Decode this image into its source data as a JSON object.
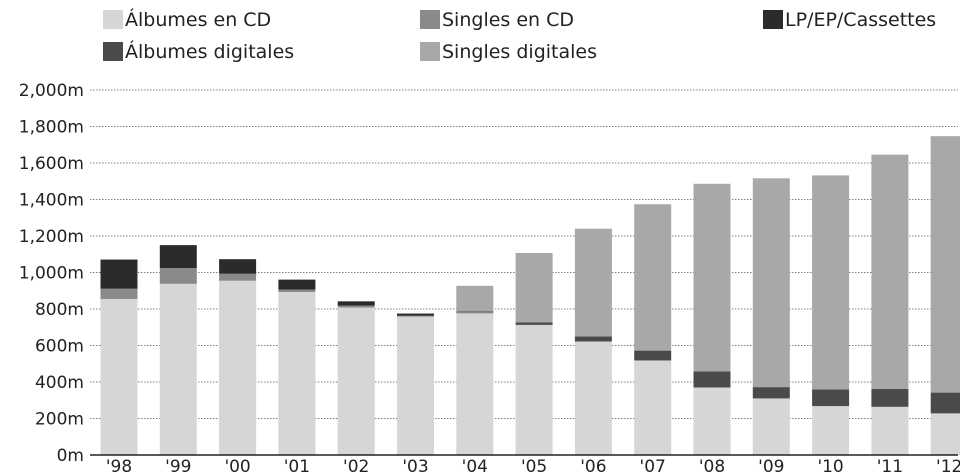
{
  "chart_data": {
    "type": "bar",
    "stacked": true,
    "categories": [
      "'98",
      "'99",
      "'00",
      "'01",
      "'02",
      "'03",
      "'04",
      "'05",
      "'06",
      "'07",
      "'08",
      "'09",
      "'10",
      "'11",
      "'12"
    ],
    "series": [
      {
        "name": "Álbumes en CD",
        "color": "#d6d6d6",
        "values": [
          855,
          938,
          955,
          893,
          808,
          758,
          776,
          712,
          622,
          518,
          370,
          310,
          268,
          264,
          228
        ]
      },
      {
        "name": "Singles en CD",
        "color": "#8a8a8a",
        "values": [
          56,
          86,
          38,
          13,
          11,
          5,
          6,
          1,
          0,
          0,
          0,
          0,
          0,
          0,
          0
        ]
      },
      {
        "name": "LP/EP/Cassettes",
        "color": "#2b2b2b",
        "values": [
          160,
          126,
          80,
          55,
          23,
          12,
          0,
          0,
          0,
          0,
          0,
          0,
          0,
          0,
          0
        ]
      },
      {
        "name": "Álbumes digitales",
        "color": "#4a4a4a",
        "values": [
          0,
          0,
          0,
          0,
          0,
          0,
          5,
          14,
          28,
          54,
          88,
          62,
          92,
          98,
          114
        ]
      },
      {
        "name": "Singles digitales",
        "color": "#a8a8a8",
        "values": [
          0,
          0,
          0,
          0,
          0,
          0,
          140,
          380,
          590,
          802,
          1028,
          1144,
          1172,
          1284,
          1405
        ]
      }
    ],
    "y_tick_labels": [
      "0m",
      "200m",
      "400m",
      "600m",
      "800m",
      "1,000m",
      "1,200m",
      "1,400m",
      "1,600m",
      "1,800m",
      "2,000m"
    ],
    "ylim": [
      0,
      2000
    ],
    "y_ticks": [
      0,
      200,
      400,
      600,
      800,
      1000,
      1200,
      1400,
      1600,
      1800,
      2000
    ],
    "grid": true,
    "legend_position": "top",
    "title": "",
    "xlabel": "",
    "ylabel": ""
  }
}
